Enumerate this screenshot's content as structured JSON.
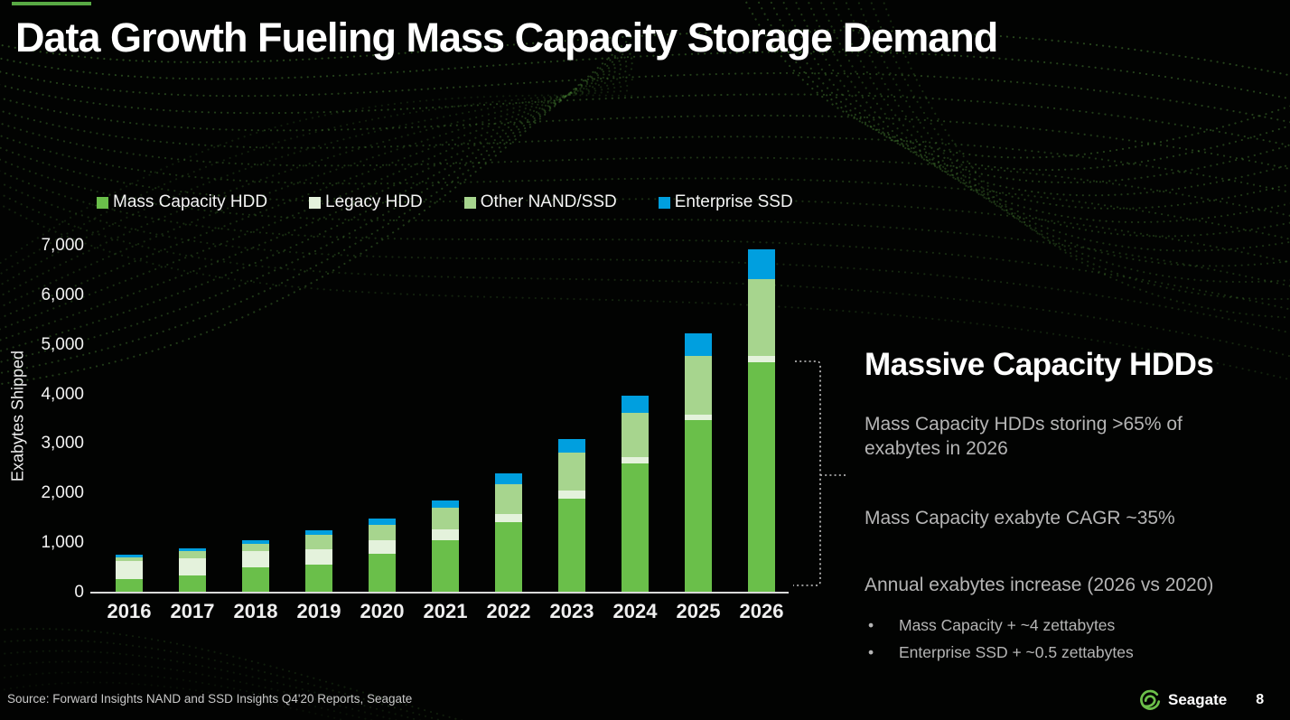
{
  "slide": {
    "title": "Data Growth Fueling Mass Capacity Storage Demand",
    "source": "Source:  Forward Insights NAND and SSD Insights Q4'20 Reports, Seagate",
    "brand": "Seagate",
    "page_number": "8"
  },
  "callout": {
    "heading": "Massive Capacity HDDs",
    "paragraphs": [
      "Mass Capacity HDDs storing >65% of exabytes in 2026",
      "Mass Capacity exabyte CAGR ~35%",
      "Annual exabytes increase (2026 vs 2020)"
    ],
    "bullets": [
      "Mass Capacity + ~4 zettabytes",
      "Enterprise SSD + ~0.5 zettabytes"
    ]
  },
  "chart_data": {
    "type": "bar",
    "stacked": true,
    "ylabel": "Exabytes Shipped",
    "xlabel": "",
    "ylim": [
      0,
      7000
    ],
    "ytick_labels": [
      "7,000",
      "6,000",
      "5,000",
      "4,000",
      "3,000",
      "2,000",
      "1,000",
      "0"
    ],
    "grid": false,
    "legend_position": "top",
    "categories": [
      "2016",
      "2017",
      "2018",
      "2019",
      "2020",
      "2021",
      "2022",
      "2023",
      "2024",
      "2025",
      "2026"
    ],
    "series": [
      {
        "name": "Mass Capacity HDD",
        "color": "#6abf4a",
        "values": [
          270,
          340,
          505,
          565,
          780,
          1055,
          1415,
          1900,
          2600,
          3480,
          4650
        ]
      },
      {
        "name": "Legacy HDD",
        "color": "#e4f2dc",
        "values": [
          365,
          355,
          335,
          305,
          275,
          230,
          180,
          165,
          135,
          120,
          120
        ]
      },
      {
        "name": "Other NAND/SSD",
        "color": "#a7d58e",
        "values": [
          75,
          140,
          145,
          305,
          315,
          435,
          590,
          760,
          900,
          1185,
          1550
        ]
      },
      {
        "name": "Enterprise SSD",
        "color": "#009fdf",
        "values": [
          55,
          55,
          65,
          80,
          120,
          140,
          215,
          275,
          345,
          455,
          600
        ]
      }
    ],
    "totals": [
      765,
      890,
      1050,
      1255,
      1490,
      1860,
      2400,
      3100,
      3980,
      5240,
      6920
    ]
  },
  "accent_color": "#58a944",
  "background_pattern_color": "#4c8a36"
}
